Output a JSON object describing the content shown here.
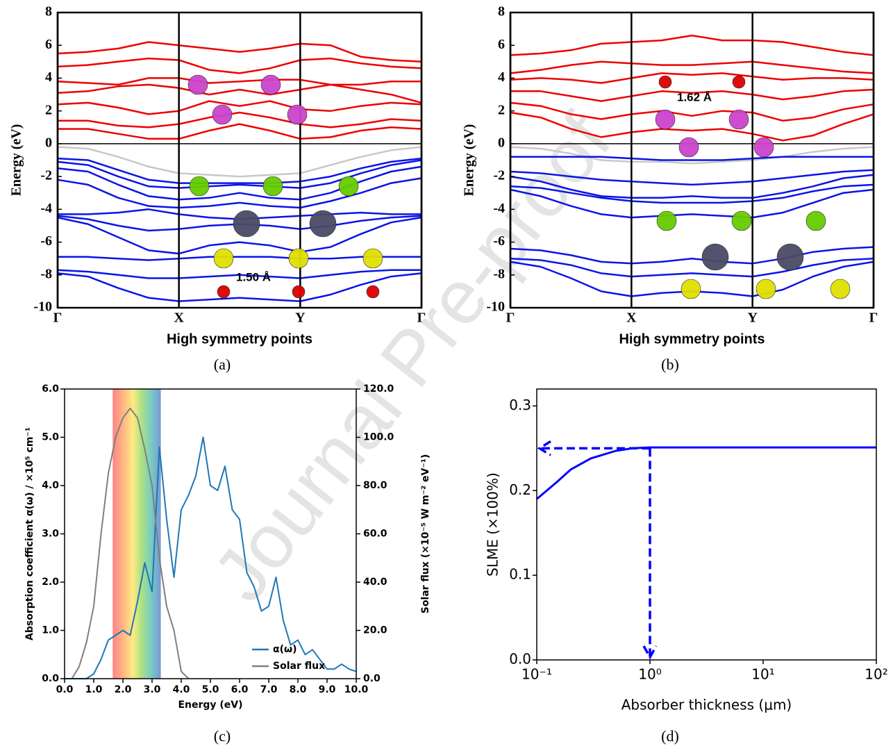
{
  "watermark": "Journal Pre-proof",
  "chart_data": [
    {
      "type": "line",
      "caption": "(a)",
      "xlabel": "High symmetry points",
      "ylabel": "Energy (eV)",
      "annotation": "1.50 Å",
      "xlim": [
        0,
        3
      ],
      "xticks": [
        {
          "value": 0,
          "label": "Γ"
        },
        {
          "value": 1,
          "label": "X"
        },
        {
          "value": 2,
          "label": "Y"
        },
        {
          "value": 3,
          "label": "Γ"
        }
      ],
      "vgrid": true,
      "zero_line": true,
      "ylim": [
        -10,
        8
      ],
      "yticks": [
        -10,
        -8,
        -6,
        -4,
        -2,
        0,
        2,
        4,
        6,
        8
      ],
      "x": [
        0,
        0.25,
        0.5,
        0.75,
        1,
        1.25,
        1.5,
        1.75,
        2,
        2.25,
        2.5,
        2.75,
        3
      ],
      "series": [
        {
          "color": "#ee0000",
          "values": [
            0.9,
            0.9,
            0.6,
            0.3,
            0.3,
            0.8,
            1.2,
            0.8,
            0.3,
            0.4,
            0.8,
            1.0,
            0.9
          ]
        },
        {
          "color": "#ee0000",
          "values": [
            1.4,
            1.4,
            1.1,
            1.0,
            1.2,
            1.6,
            1.9,
            1.6,
            1.2,
            1.0,
            1.2,
            1.5,
            1.4
          ]
        },
        {
          "color": "#ee0000",
          "values": [
            2.4,
            2.5,
            2.2,
            1.8,
            2.0,
            2.6,
            2.3,
            2.6,
            2.1,
            2.0,
            2.3,
            2.5,
            2.4
          ]
        },
        {
          "color": "#ee0000",
          "values": [
            3.1,
            3.2,
            3.5,
            3.6,
            3.4,
            3.0,
            3.3,
            3.0,
            3.3,
            3.6,
            3.3,
            3.0,
            2.5
          ]
        },
        {
          "color": "#ee0000",
          "values": [
            3.8,
            3.7,
            3.6,
            4.0,
            4.0,
            3.7,
            3.8,
            3.9,
            3.9,
            3.6,
            3.6,
            3.8,
            3.8
          ]
        },
        {
          "color": "#ee0000",
          "values": [
            4.7,
            4.8,
            5.0,
            5.2,
            5.1,
            4.5,
            4.3,
            4.6,
            5.1,
            5.2,
            4.9,
            4.7,
            4.6
          ]
        },
        {
          "color": "#ee0000",
          "values": [
            5.5,
            5.6,
            5.8,
            6.2,
            6.0,
            5.8,
            5.6,
            5.8,
            6.1,
            6.0,
            5.3,
            5.1,
            5.0
          ]
        },
        {
          "color": "#c8c8c8",
          "values": [
            -0.2,
            -0.3,
            -0.8,
            -1.4,
            -1.8,
            -1.9,
            -2.0,
            -1.9,
            -1.8,
            -1.3,
            -0.8,
            -0.4,
            -0.2
          ]
        },
        {
          "color": "#0a14e6",
          "values": [
            -0.9,
            -1.0,
            -1.6,
            -2.2,
            -2.4,
            -2.4,
            -2.4,
            -2.4,
            -2.3,
            -2.0,
            -1.5,
            -1.1,
            -0.9
          ]
        },
        {
          "color": "#0a14e6",
          "values": [
            -1.1,
            -1.3,
            -2.0,
            -2.6,
            -2.7,
            -2.6,
            -2.5,
            -2.6,
            -2.7,
            -2.4,
            -1.8,
            -1.3,
            -1.0
          ]
        },
        {
          "color": "#0a14e6",
          "values": [
            -1.5,
            -1.7,
            -2.5,
            -3.2,
            -3.4,
            -3.3,
            -3.0,
            -3.3,
            -3.4,
            -3.0,
            -2.3,
            -1.7,
            -1.4
          ]
        },
        {
          "color": "#0a14e6",
          "values": [
            -2.2,
            -2.5,
            -3.3,
            -3.8,
            -3.9,
            -3.8,
            -3.6,
            -3.8,
            -3.9,
            -3.5,
            -3.0,
            -2.4,
            -2.1
          ]
        },
        {
          "color": "#0a14e6",
          "values": [
            -4.3,
            -4.3,
            -4.2,
            -4.0,
            -4.3,
            -4.5,
            -4.6,
            -4.5,
            -4.4,
            -4.3,
            -4.2,
            -4.3,
            -4.3
          ]
        },
        {
          "color": "#0a14e6",
          "values": [
            -4.4,
            -4.6,
            -5.0,
            -5.3,
            -5.2,
            -5.0,
            -4.9,
            -5.0,
            -5.2,
            -5.0,
            -4.7,
            -4.5,
            -4.4
          ]
        },
        {
          "color": "#0a14e6",
          "values": [
            -4.5,
            -4.9,
            -5.7,
            -6.5,
            -6.7,
            -6.2,
            -6.0,
            -6.2,
            -6.6,
            -6.3,
            -5.5,
            -4.8,
            -4.5
          ]
        },
        {
          "color": "#0a14e6",
          "values": [
            -6.9,
            -6.9,
            -7.0,
            -7.1,
            -7.0,
            -6.9,
            -6.9,
            -6.9,
            -7.0,
            -7.0,
            -6.9,
            -6.9,
            -6.9
          ]
        },
        {
          "color": "#0a14e6",
          "values": [
            -7.7,
            -7.8,
            -8.0,
            -8.2,
            -8.2,
            -8.1,
            -8.0,
            -8.1,
            -8.2,
            -8.0,
            -7.8,
            -7.7,
            -7.7
          ]
        },
        {
          "color": "#0a14e6",
          "values": [
            -7.9,
            -8.1,
            -8.8,
            -9.4,
            -9.6,
            -9.5,
            -9.4,
            -9.5,
            -9.6,
            -9.2,
            -8.6,
            -8.1,
            -7.9
          ]
        }
      ]
    },
    {
      "type": "line",
      "caption": "(b)",
      "xlabel": "High symmetry points",
      "ylabel": "Energy (eV)",
      "annotation": "1.62 Å",
      "xlim": [
        0,
        3
      ],
      "xticks": [
        {
          "value": 0,
          "label": "Γ"
        },
        {
          "value": 1,
          "label": "X"
        },
        {
          "value": 2,
          "label": "Y"
        },
        {
          "value": 3,
          "label": "Γ"
        }
      ],
      "vgrid": true,
      "zero_line": true,
      "ylim": [
        -10,
        8
      ],
      "yticks": [
        -10,
        -8,
        -6,
        -4,
        -2,
        0,
        2,
        4,
        6,
        8
      ],
      "x": [
        0,
        0.25,
        0.5,
        0.75,
        1,
        1.25,
        1.5,
        1.75,
        2,
        2.25,
        2.5,
        2.75,
        3
      ],
      "series": [
        {
          "color": "#ee0000",
          "values": [
            1.9,
            1.6,
            0.9,
            0.4,
            0.7,
            0.9,
            0.8,
            0.9,
            0.6,
            0.2,
            0.5,
            1.2,
            1.8
          ]
        },
        {
          "color": "#ee0000",
          "values": [
            2.5,
            2.3,
            1.8,
            1.5,
            1.8,
            2.0,
            1.7,
            2.0,
            1.9,
            1.4,
            1.6,
            2.1,
            2.4
          ]
        },
        {
          "color": "#ee0000",
          "values": [
            3.2,
            3.2,
            2.9,
            2.6,
            2.9,
            3.2,
            3.1,
            3.2,
            3.0,
            2.7,
            2.9,
            3.2,
            3.3
          ]
        },
        {
          "color": "#ee0000",
          "values": [
            3.9,
            4.0,
            3.9,
            3.7,
            4.0,
            4.3,
            4.2,
            4.3,
            4.1,
            3.9,
            4.0,
            4.0,
            3.9
          ]
        },
        {
          "color": "#ee0000",
          "values": [
            4.3,
            4.5,
            4.8,
            5.0,
            4.9,
            4.8,
            4.8,
            4.9,
            5.0,
            4.8,
            4.6,
            4.4,
            4.3
          ]
        },
        {
          "color": "#ee0000",
          "values": [
            5.4,
            5.5,
            5.7,
            6.1,
            6.2,
            6.3,
            6.6,
            6.3,
            6.3,
            6.2,
            5.9,
            5.6,
            5.4
          ]
        },
        {
          "color": "#c8c8c8",
          "values": [
            -0.2,
            -0.3,
            -0.6,
            -1.0,
            -1.1,
            -1.1,
            -1.2,
            -1.1,
            -1.0,
            -0.8,
            -0.5,
            -0.3,
            -0.2
          ]
        },
        {
          "color": "#0a14e6",
          "values": [
            -0.8,
            -0.8,
            -0.8,
            -0.8,
            -0.9,
            -1.0,
            -1.0,
            -1.0,
            -0.9,
            -0.8,
            -0.8,
            -0.8,
            -0.8
          ]
        },
        {
          "color": "#0a14e6",
          "values": [
            -1.7,
            -1.8,
            -2.0,
            -2.2,
            -2.3,
            -2.4,
            -2.5,
            -2.4,
            -2.3,
            -2.1,
            -1.9,
            -1.7,
            -1.6
          ]
        },
        {
          "color": "#0a14e6",
          "values": [
            -2.0,
            -2.3,
            -2.8,
            -3.2,
            -3.3,
            -3.3,
            -3.2,
            -3.3,
            -3.3,
            -3.0,
            -2.6,
            -2.1,
            -1.9
          ]
        },
        {
          "color": "#0a14e6",
          "values": [
            -2.6,
            -2.7,
            -3.0,
            -3.3,
            -3.5,
            -3.6,
            -3.6,
            -3.6,
            -3.5,
            -3.3,
            -2.9,
            -2.6,
            -2.5
          ]
        },
        {
          "color": "#0a14e6",
          "values": [
            -2.8,
            -3.2,
            -3.8,
            -4.3,
            -4.5,
            -4.4,
            -4.3,
            -4.4,
            -4.5,
            -4.2,
            -3.6,
            -3.0,
            -2.8
          ]
        },
        {
          "color": "#0a14e6",
          "values": [
            -6.4,
            -6.5,
            -6.8,
            -7.2,
            -7.3,
            -7.2,
            -7.0,
            -7.2,
            -7.3,
            -7.0,
            -6.6,
            -6.4,
            -6.3
          ]
        },
        {
          "color": "#0a14e6",
          "values": [
            -7.0,
            -7.1,
            -7.4,
            -7.9,
            -8.1,
            -8.0,
            -7.9,
            -8.0,
            -8.1,
            -7.8,
            -7.4,
            -7.1,
            -7.0
          ]
        },
        {
          "color": "#0a14e6",
          "values": [
            -7.2,
            -7.5,
            -8.2,
            -9.0,
            -9.3,
            -9.1,
            -9.0,
            -9.1,
            -9.3,
            -8.9,
            -8.1,
            -7.5,
            -7.2
          ]
        }
      ]
    },
    {
      "type": "line",
      "caption": "(c)",
      "xlabel": "Energy (eV)",
      "ylabel": "Absorption coefficient α(ω) / ×10⁵ cm⁻¹",
      "y2label": "Solar flux (×10⁻⁵ W m⁻² eV⁻¹)",
      "xlim": [
        0,
        10
      ],
      "xticks": [
        {
          "value": 0,
          "label": "0.0"
        },
        {
          "value": 1,
          "label": "1.0"
        },
        {
          "value": 2,
          "label": "2.0"
        },
        {
          "value": 3,
          "label": "3.0"
        },
        {
          "value": 4,
          "label": "4.0"
        },
        {
          "value": 5,
          "label": "5.0"
        },
        {
          "value": 6,
          "label": "6.0"
        },
        {
          "value": 7,
          "label": "7.0"
        },
        {
          "value": 8,
          "label": "8.0"
        },
        {
          "value": 9,
          "label": "9.0"
        },
        {
          "value": 10,
          "label": "10.0"
        }
      ],
      "ylim": [
        0,
        6
      ],
      "yticks": [
        {
          "value": 0,
          "label": "0.0"
        },
        {
          "value": 1,
          "label": "1.0"
        },
        {
          "value": 2,
          "label": "2.0"
        },
        {
          "value": 3,
          "label": "3.0"
        },
        {
          "value": 4,
          "label": "4.0"
        },
        {
          "value": 5,
          "label": "5.0"
        },
        {
          "value": 6,
          "label": "6.0"
        }
      ],
      "y2lim": [
        0,
        120
      ],
      "y2ticks": [
        {
          "value": 0,
          "label": "0.0"
        },
        {
          "value": 20,
          "label": "20.0"
        },
        {
          "value": 40,
          "label": "40.0"
        },
        {
          "value": 60,
          "label": "60.0"
        },
        {
          "value": 80,
          "label": "80.0"
        },
        {
          "value": 100,
          "label": "100.0"
        },
        {
          "value": 120,
          "label": "120.0"
        }
      ],
      "spectrum_range": [
        1.65,
        3.3
      ],
      "legend": "lower right",
      "series": [
        {
          "name": "α(ω)",
          "color": "#1f77b4",
          "x": [
            0,
            0.25,
            0.5,
            0.75,
            1,
            1.25,
            1.5,
            1.75,
            2,
            2.25,
            2.5,
            2.75,
            3,
            3.25,
            3.5,
            3.75,
            4,
            4.25,
            4.5,
            4.75,
            5,
            5.25,
            5.5,
            5.75,
            6,
            6.25,
            6.5,
            6.75,
            7,
            7.25,
            7.5,
            7.75,
            8,
            8.25,
            8.5,
            8.75,
            9,
            9.25,
            9.5,
            9.75,
            10
          ],
          "values": [
            0,
            0,
            0,
            0,
            0.1,
            0.4,
            0.8,
            0.9,
            1.0,
            0.9,
            1.6,
            2.4,
            1.8,
            4.8,
            3.3,
            2.1,
            3.5,
            3.8,
            4.2,
            5.0,
            4.0,
            3.9,
            4.4,
            3.5,
            3.3,
            2.2,
            1.9,
            1.4,
            1.5,
            2.1,
            1.2,
            0.7,
            0.8,
            0.5,
            0.6,
            0.4,
            0.2,
            0.2,
            0.3,
            0.2,
            0.15
          ]
        },
        {
          "name": "Solar flux",
          "color": "#7f7f7f",
          "axis": "y2",
          "x": [
            0.25,
            0.5,
            0.75,
            1,
            1.25,
            1.5,
            1.75,
            2,
            2.25,
            2.5,
            2.75,
            3,
            3.25,
            3.5,
            3.75,
            4,
            4.25
          ],
          "values": [
            0,
            5,
            15,
            30,
            60,
            85,
            100,
            108,
            112,
            108,
            95,
            80,
            50,
            30,
            20,
            3,
            0
          ]
        }
      ]
    },
    {
      "type": "line",
      "caption": "(d)",
      "xlabel": "Absorber thickness (μm)",
      "ylabel": "SLME (×100%)",
      "xscale": "log",
      "xlim": [
        0.1,
        100
      ],
      "xticks": [
        {
          "value": 0.1,
          "label": "10⁻¹"
        },
        {
          "value": 1,
          "label": "10⁰"
        },
        {
          "value": 10,
          "label": "10¹"
        },
        {
          "value": 100,
          "label": "10²"
        }
      ],
      "ylim": [
        0,
        0.32
      ],
      "yticks": [
        {
          "value": 0,
          "label": "0.0"
        },
        0.1,
        0.2,
        0.3
      ],
      "guide": {
        "x": 1,
        "y": 0.25
      },
      "series": [
        {
          "color": "#0000ff",
          "x": [
            0.1,
            0.15,
            0.2,
            0.3,
            0.5,
            0.7,
            1,
            2,
            5,
            10,
            100
          ],
          "values": [
            0.19,
            0.21,
            0.225,
            0.238,
            0.247,
            0.25,
            0.251,
            0.251,
            0.251,
            0.251,
            0.251
          ]
        }
      ]
    }
  ]
}
